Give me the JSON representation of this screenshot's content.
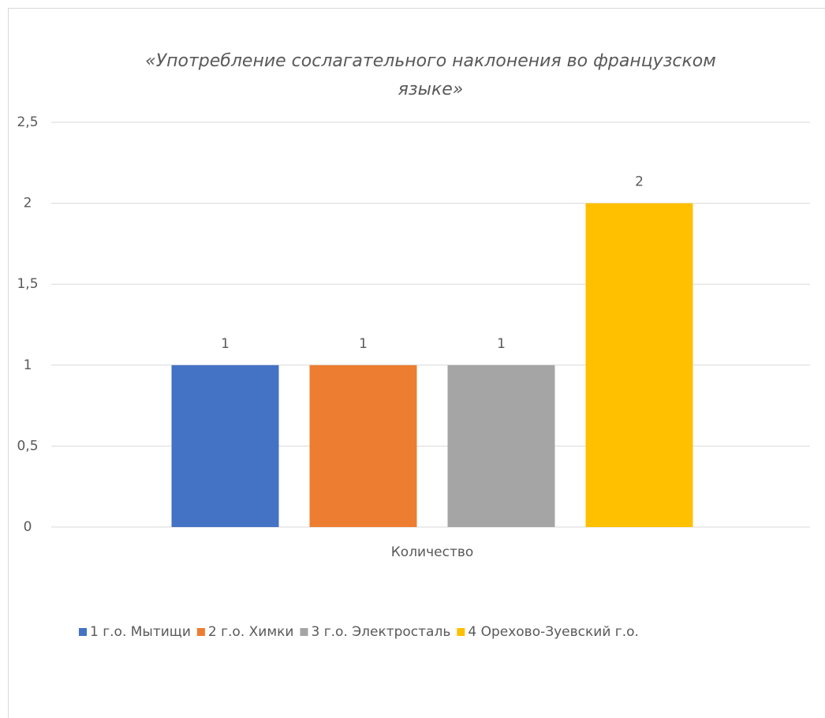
{
  "chart_data": {
    "type": "bar",
    "title": "«Употребление сослагательного наклонения во французском языке»",
    "categories": [
      "Количество"
    ],
    "series": [
      {
        "name": "1 г.о. Мытищи",
        "color": "#4472c4",
        "values": [
          1
        ]
      },
      {
        "name": "2 г.о. Химки",
        "color": "#ed7d31",
        "values": [
          1
        ]
      },
      {
        "name": "3 г.о. Электросталь",
        "color": "#a5a5a5",
        "values": [
          1
        ]
      },
      {
        "name": "4 Орехово-Зуевский г.о.",
        "color": "#ffc000",
        "values": [
          2
        ]
      }
    ],
    "ylim": [
      0,
      2.5
    ],
    "yticks": [
      0,
      {
        "value": 0.5,
        "label": "0,5"
      },
      1,
      {
        "value": 1.5,
        "label": "1,5"
      },
      2,
      {
        "value": 2.5,
        "label": "2,5"
      }
    ],
    "grid": true,
    "legend": "bottom"
  }
}
